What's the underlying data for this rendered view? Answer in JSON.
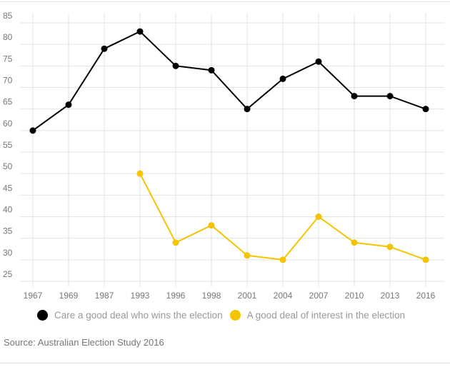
{
  "chart_data": {
    "type": "line",
    "categories": [
      "1967",
      "1969",
      "1987",
      "1993",
      "1996",
      "1998",
      "2001",
      "2004",
      "2007",
      "2010",
      "2013",
      "2016"
    ],
    "ylim": [
      25,
      85
    ],
    "yticks": [
      85,
      80,
      75,
      70,
      65,
      60,
      55,
      50,
      45,
      40,
      35,
      30,
      25
    ],
    "grid": true,
    "legend_placement": "bottom",
    "series": [
      {
        "name": "Care a good deal who wins the election",
        "color": "#000000",
        "values": [
          60,
          66,
          79,
          83,
          75,
          74,
          65,
          72,
          76,
          68,
          68,
          65
        ]
      },
      {
        "name": "A good deal of interest in the election",
        "color": "#f5c400",
        "values": [
          null,
          null,
          null,
          50,
          34,
          38,
          31,
          30,
          40,
          34,
          33,
          30
        ]
      }
    ]
  },
  "source": "Source: Australian Election Study 2016"
}
